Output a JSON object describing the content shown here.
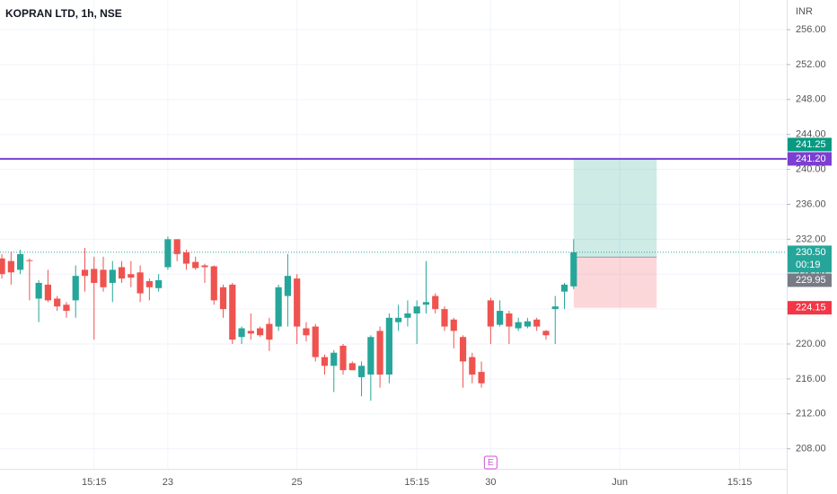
{
  "chart_data": {
    "type": "candlestick",
    "title": "KOPRAN LTD, 1h, NSE",
    "currency": "INR",
    "up_color": "#26a69a",
    "down_color": "#ef5350",
    "open": [
      229.8,
      229.5,
      228.5,
      229.6,
      225.2,
      226.8,
      225.2,
      224.5,
      225.0,
      228.5,
      228.6,
      228.5,
      227.0,
      228.8,
      228.0,
      228.2,
      227.2,
      226.4,
      228.8,
      232.0,
      230.5,
      229.4,
      229.0,
      228.9,
      226.5,
      226.8,
      220.8,
      221.5,
      221.8,
      222.3,
      222.0,
      225.5,
      227.5,
      221.8,
      222.0,
      218.5,
      217.5,
      219.8,
      217.8,
      216.2,
      216.5,
      221.5,
      216.5,
      222.5,
      223.0,
      223.5,
      224.5,
      225.5,
      224.0,
      222.8,
      220.8,
      218.5,
      216.8,
      225.0,
      222.2,
      223.5,
      221.8,
      222.0,
      222.8,
      221.5,
      224.0,
      226.0,
      226.6
    ],
    "high": [
      230.3,
      230.6,
      230.8,
      229.8,
      227.3,
      228.5,
      225.5,
      224.8,
      229.0,
      231.0,
      230.0,
      230.0,
      229.5,
      229.5,
      229.5,
      229.0,
      227.5,
      228.0,
      232.3,
      232.0,
      230.8,
      230.0,
      229.2,
      229.0,
      226.8,
      227.0,
      222.0,
      223.5,
      222.0,
      223.0,
      226.8,
      230.3,
      228.0,
      222.5,
      222.3,
      218.8,
      219.3,
      220.0,
      218.0,
      218.0,
      221.0,
      222.0,
      223.5,
      224.5,
      225.0,
      225.0,
      229.5,
      225.8,
      224.3,
      223.0,
      221.0,
      219.0,
      218.0,
      225.3,
      225.0,
      223.8,
      223.0,
      223.0,
      223.0,
      221.6,
      225.5,
      227.0,
      232.0
    ],
    "low": [
      227.5,
      226.8,
      228.0,
      225.0,
      222.5,
      224.8,
      223.8,
      223.0,
      223.0,
      226.0,
      220.5,
      226.0,
      224.8,
      227.0,
      226.5,
      224.8,
      225.0,
      226.0,
      228.5,
      229.5,
      228.5,
      228.5,
      227.0,
      224.5,
      223.0,
      220.0,
      220.0,
      220.5,
      220.8,
      219.2,
      221.5,
      222.0,
      220.0,
      220.3,
      218.0,
      216.5,
      214.5,
      216.5,
      217.0,
      214.0,
      213.5,
      215.0,
      215.5,
      221.5,
      222.0,
      220.0,
      223.5,
      223.5,
      221.5,
      219.5,
      215.0,
      215.5,
      215.0,
      220.0,
      222.0,
      220.0,
      221.5,
      221.8,
      221.5,
      220.5,
      220.0,
      224.0,
      226.3
    ],
    "close": [
      228.0,
      228.2,
      230.3,
      229.5,
      227.0,
      225.0,
      224.3,
      223.8,
      227.8,
      227.8,
      227.0,
      226.5,
      228.5,
      227.5,
      227.6,
      225.8,
      226.5,
      227.3,
      232.0,
      230.3,
      229.2,
      228.7,
      228.8,
      225.0,
      224.0,
      220.5,
      221.8,
      221.2,
      221.0,
      220.5,
      226.5,
      227.8,
      222.0,
      221.0,
      218.5,
      217.5,
      219.0,
      217.0,
      217.0,
      217.5,
      220.8,
      216.5,
      223.0,
      223.0,
      223.5,
      224.3,
      224.8,
      224.0,
      222.0,
      221.5,
      218.0,
      216.5,
      215.5,
      222.0,
      223.8,
      222.0,
      222.5,
      222.6,
      222.0,
      221.0,
      224.3,
      226.8,
      230.5
    ],
    "xlim": [
      -0.2,
      85.1
    ],
    "xticks": [
      {
        "value": 10,
        "label": "15:15"
      },
      {
        "value": 18,
        "label": "23"
      },
      {
        "value": 32,
        "label": "25"
      },
      {
        "value": 45,
        "label": "15:15"
      },
      {
        "value": 53,
        "label": "30"
      },
      {
        "value": 67,
        "label": "Jun"
      },
      {
        "value": 80,
        "label": "15:15"
      }
    ],
    "ylim": [
      205.7,
      259.4
    ],
    "yticks": [
      {
        "value": 208,
        "label": "208.00"
      },
      {
        "value": 212,
        "label": "212.00"
      },
      {
        "value": 216,
        "label": "216.00"
      },
      {
        "value": 220,
        "label": "220.00"
      },
      {
        "value": 224,
        "label": "224.00"
      },
      {
        "value": 228,
        "label": "228.00"
      },
      {
        "value": 232,
        "label": "232.00"
      },
      {
        "value": 236,
        "label": "236.00"
      },
      {
        "value": 240,
        "label": "240.00"
      },
      {
        "value": 244,
        "label": "244.00"
      },
      {
        "value": 248,
        "label": "248.00"
      },
      {
        "value": 252,
        "label": "252.00"
      },
      {
        "value": 256,
        "label": "256.00"
      }
    ],
    "grid": true,
    "horizontal_line": {
      "value": 241.2,
      "color": "#7b3fd1"
    },
    "last_price_line": 230.5,
    "position": {
      "start": 62,
      "end": 71,
      "entry": 229.95,
      "target": 241.25,
      "stop": 224.15
    },
    "price_tags": [
      {
        "value": 241.2,
        "label": "241.20",
        "color": "#7b3fd1"
      },
      {
        "value": 241.25,
        "label": "241.25",
        "color": "#089981"
      },
      {
        "value": 230.5,
        "label": "230.50",
        "color": "#26a69a",
        "countdown": "00:19"
      },
      {
        "value": 229.95,
        "label": "229.95",
        "color": "#787b86"
      },
      {
        "value": 224.15,
        "label": "224.15",
        "color": "#f23645"
      }
    ],
    "event_marker": {
      "x": 53,
      "label": "E"
    }
  }
}
